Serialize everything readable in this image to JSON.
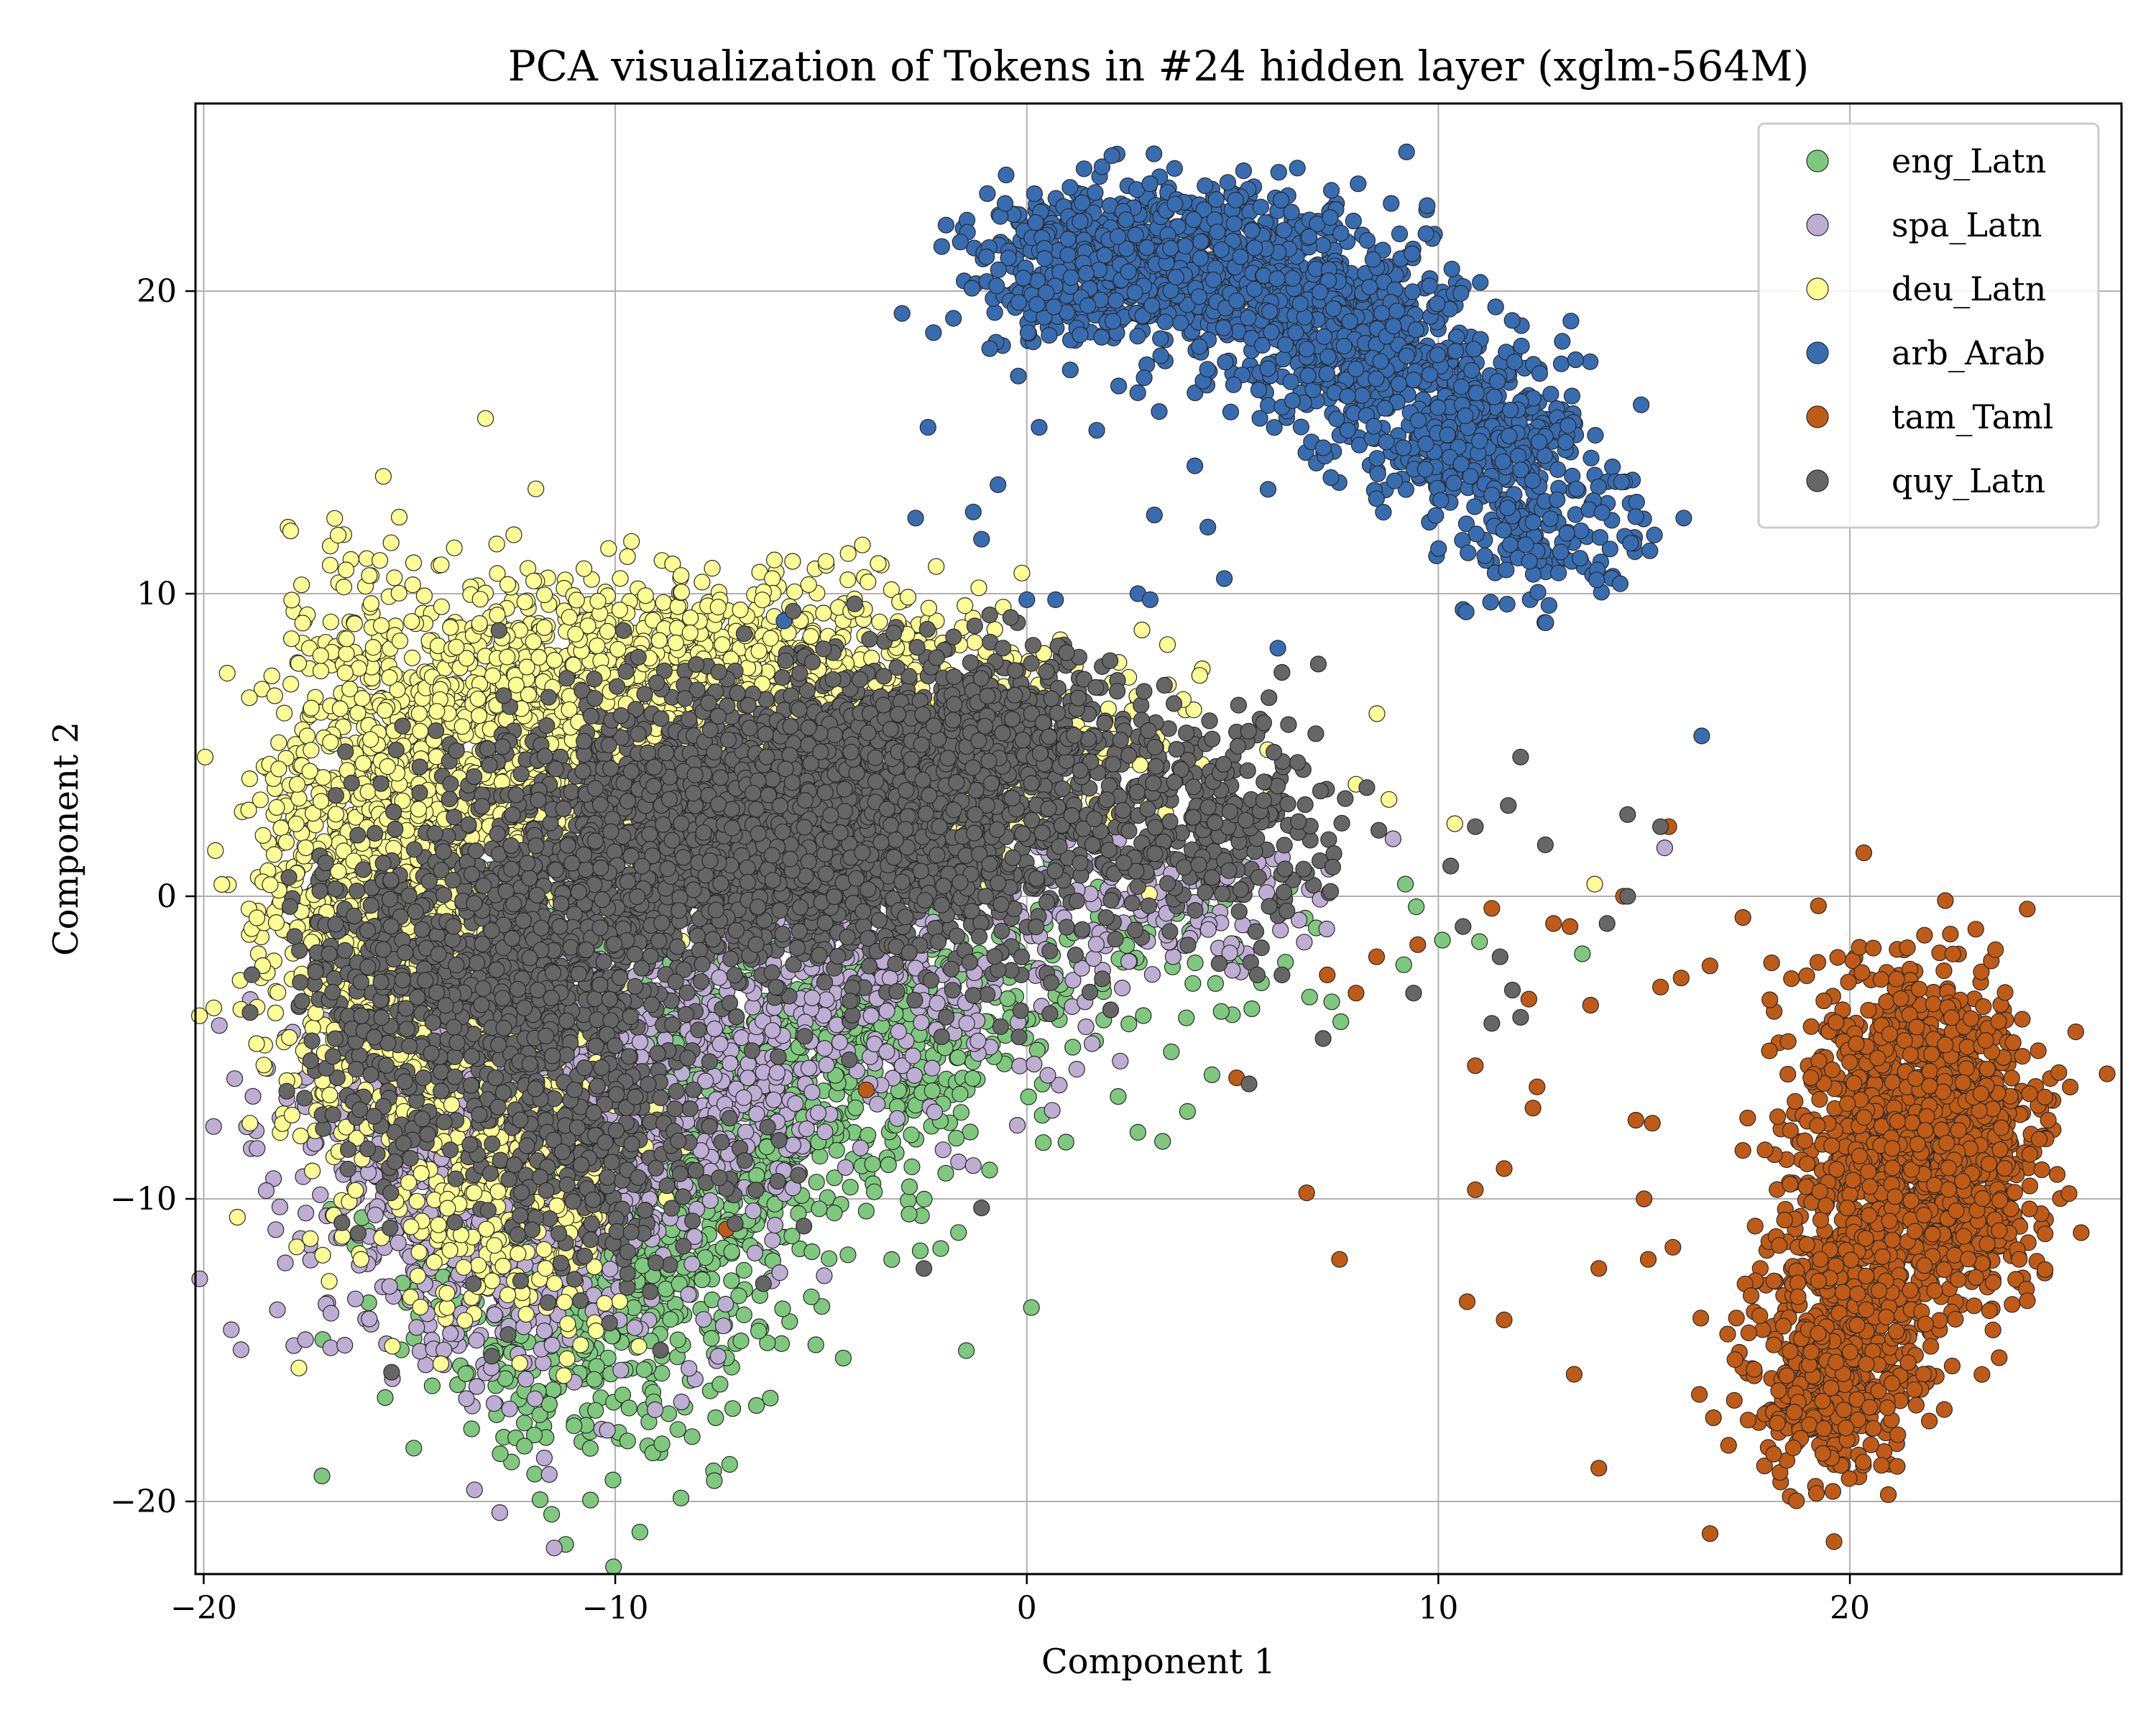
{
  "chart_data": {
    "type": "scatter",
    "title": "PCA visualization of Tokens in #24 hidden layer (xglm-564M)",
    "xlabel": "Component 1",
    "ylabel": "Component 2",
    "xlim": [
      -20.2,
      26.6
    ],
    "ylim": [
      -22.4,
      26.2
    ],
    "xticks": [
      -20,
      -10,
      0,
      10,
      20
    ],
    "yticks": [
      -20,
      -10,
      0,
      10,
      20
    ],
    "xtick_labels": [
      "−20",
      "−10",
      "0",
      "10",
      "20"
    ],
    "ytick_labels": [
      "−20",
      "−10",
      "0",
      "10",
      "20"
    ],
    "grid": true,
    "legend_position": "top-right",
    "series": [
      {
        "name": "eng_Latn",
        "color": "#7fc97f",
        "clusters": [
          {
            "cx": -10.5,
            "cy": -11.0,
            "sx": 2.2,
            "sy": 3.8,
            "n": 900
          },
          {
            "cx": -7.0,
            "cy": -7.0,
            "sx": 2.5,
            "sy": 2.6,
            "n": 600
          },
          {
            "cx": -3.0,
            "cy": -4.0,
            "sx": 2.0,
            "sy": 1.6,
            "n": 260
          },
          {
            "cx": 3.0,
            "cy": -2.0,
            "sx": 3.0,
            "sy": 1.5,
            "n": 70
          }
        ],
        "extra_points": [
          [
            2.7,
            -7.8
          ],
          [
            3.3,
            -8.1
          ],
          [
            4.5,
            -5.9
          ],
          [
            9.2,
            0.4
          ],
          [
            13.5,
            -1.9
          ],
          [
            11.0,
            -1.5
          ],
          [
            6.4,
            0.3
          ],
          [
            -11.0,
            -17.5
          ],
          [
            -9.7,
            -18.0
          ]
        ]
      },
      {
        "name": "spa_Latn",
        "color": "#beaed4",
        "clusters": [
          {
            "cx": -13.0,
            "cy": -9.0,
            "sx": 2.5,
            "sy": 3.2,
            "n": 900
          },
          {
            "cx": -9.5,
            "cy": -6.5,
            "sx": 2.5,
            "sy": 2.2,
            "n": 500
          },
          {
            "cx": -4.0,
            "cy": -2.5,
            "sx": 3.0,
            "sy": 2.2,
            "n": 400
          },
          {
            "cx": 3.5,
            "cy": 0.0,
            "sx": 2.5,
            "sy": 1.3,
            "n": 110
          }
        ],
        "extra_points": [
          [
            8.9,
            1.9
          ],
          [
            15.5,
            1.6
          ],
          [
            -1.3,
            -8.9
          ],
          [
            -7.5,
            -15.2
          ]
        ]
      },
      {
        "name": "deu_Latn",
        "color": "#fdfd96",
        "clusters": [
          {
            "cx": -15.5,
            "cy": 0.5,
            "sx": 1.6,
            "sy": 4.6,
            "n": 1300
          },
          {
            "cx": -11.5,
            "cy": 5.0,
            "sx": 2.4,
            "sy": 2.4,
            "n": 1100
          },
          {
            "cx": -6.5,
            "cy": 7.5,
            "sx": 3.0,
            "sy": 1.6,
            "n": 700
          },
          {
            "cx": -12.5,
            "cy": -9.5,
            "sx": 1.5,
            "sy": 2.5,
            "n": 350
          },
          {
            "cx": -2.0,
            "cy": 4.5,
            "sx": 3.0,
            "sy": 1.7,
            "n": 300
          }
        ],
        "extra_points": [
          [
            2.8,
            8.8
          ],
          [
            4.2,
            7.3
          ],
          [
            3.8,
            6.5
          ],
          [
            10.4,
            2.4
          ],
          [
            13.8,
            0.4
          ],
          [
            8.0,
            3.7
          ],
          [
            8.8,
            3.2
          ],
          [
            -5.3,
            10.3
          ],
          [
            -8.4,
            10.6
          ]
        ]
      },
      {
        "name": "arb_Arab",
        "color": "#386cb0",
        "clusters": [
          {
            "cx": 2.0,
            "cy": 20.8,
            "sx": 1.6,
            "sy": 1.3,
            "n": 500
          },
          {
            "cx": 5.0,
            "cy": 20.8,
            "sx": 1.8,
            "sy": 1.3,
            "n": 520
          },
          {
            "cx": 8.0,
            "cy": 18.2,
            "sx": 1.5,
            "sy": 1.5,
            "n": 420
          },
          {
            "cx": 10.8,
            "cy": 15.5,
            "sx": 1.3,
            "sy": 1.4,
            "n": 350
          },
          {
            "cx": 12.8,
            "cy": 12.3,
            "sx": 1.1,
            "sy": 1.2,
            "n": 150
          }
        ],
        "extra_points": [
          [
            -2.4,
            15.5
          ],
          [
            -2.7,
            12.5
          ],
          [
            -1.3,
            12.7
          ],
          [
            -0.7,
            13.6
          ],
          [
            -1.1,
            11.8
          ],
          [
            0.0,
            9.8
          ],
          [
            0.7,
            9.8
          ],
          [
            -5.9,
            9.1
          ],
          [
            6.1,
            8.2
          ],
          [
            16.4,
            5.3
          ],
          [
            2.7,
            10.0
          ],
          [
            3.0,
            9.8
          ],
          [
            4.8,
            10.5
          ],
          [
            4.4,
            12.2
          ],
          [
            3.1,
            12.6
          ],
          [
            0.3,
            15.5
          ],
          [
            1.7,
            15.4
          ],
          [
            -0.9,
            18.1
          ]
        ]
      },
      {
        "name": "tam_Taml",
        "color": "#bf5b17",
        "clusters": [
          {
            "cx": 21.6,
            "cy": -6.5,
            "sx": 1.3,
            "sy": 2.2,
            "n": 700
          },
          {
            "cx": 22.8,
            "cy": -9.5,
            "sx": 1.0,
            "sy": 2.0,
            "n": 420
          },
          {
            "cx": 20.2,
            "cy": -12.5,
            "sx": 1.1,
            "sy": 2.6,
            "n": 500
          },
          {
            "cx": 19.3,
            "cy": -16.5,
            "sx": 0.9,
            "sy": 1.5,
            "n": 260
          }
        ],
        "extra_points": [
          [
            -7.3,
            -11.0
          ],
          [
            -3.9,
            -6.4
          ],
          [
            5.1,
            -6.0
          ],
          [
            6.8,
            -9.8
          ],
          [
            7.6,
            -12.0
          ],
          [
            10.9,
            -9.7
          ],
          [
            10.7,
            -13.4
          ],
          [
            11.6,
            -14.0
          ],
          [
            11.6,
            -9.0
          ],
          [
            13.3,
            -15.8
          ],
          [
            13.9,
            -18.9
          ],
          [
            13.9,
            -12.3
          ],
          [
            12.3,
            -7.0
          ],
          [
            12.4,
            -6.3
          ],
          [
            10.9,
            -5.6
          ],
          [
            12.2,
            -3.4
          ],
          [
            13.7,
            -3.6
          ],
          [
            14.8,
            -7.4
          ],
          [
            15.2,
            -7.5
          ],
          [
            15.0,
            -10.0
          ],
          [
            15.1,
            -12.0
          ],
          [
            15.7,
            -11.6
          ],
          [
            15.4,
            -3.0
          ],
          [
            15.9,
            -2.7
          ],
          [
            16.6,
            -2.3
          ],
          [
            17.4,
            -0.7
          ],
          [
            17.4,
            -8.4
          ],
          [
            17.7,
            -10.9
          ],
          [
            17.6,
            -13.2
          ],
          [
            13.2,
            -1.0
          ],
          [
            12.8,
            -0.9
          ],
          [
            14.5,
            0.0
          ],
          [
            11.3,
            -0.4
          ],
          [
            7.3,
            -2.6
          ],
          [
            8.0,
            -3.2
          ],
          [
            8.5,
            -2.0
          ],
          [
            9.5,
            -1.6
          ],
          [
            15.6,
            2.3
          ],
          [
            18.1,
            -2.2
          ],
          [
            18.5,
            -4.8
          ]
        ]
      },
      {
        "name": "quy_Latn",
        "color": "#666666",
        "clusters": [
          {
            "cx": -5.5,
            "cy": 2.2,
            "sx": 3.6,
            "sy": 2.3,
            "n": 2600
          },
          {
            "cx": -12.5,
            "cy": -2.5,
            "sx": 2.1,
            "sy": 2.4,
            "n": 800
          },
          {
            "cx": -10.5,
            "cy": -8.5,
            "sx": 1.7,
            "sy": 1.9,
            "n": 300
          },
          {
            "cx": -1.0,
            "cy": 5.5,
            "sx": 1.7,
            "sy": 1.3,
            "n": 400
          },
          {
            "cx": 4.5,
            "cy": 2.5,
            "sx": 1.7,
            "sy": 1.7,
            "n": 260
          },
          {
            "cx": -15.5,
            "cy": -4.5,
            "sx": 1.2,
            "sy": 3.5,
            "n": 150
          }
        ],
        "extra_points": [
          [
            10.3,
            1.0
          ],
          [
            10.9,
            2.3
          ],
          [
            11.7,
            3.0
          ],
          [
            12.0,
            4.6
          ],
          [
            12.6,
            1.7
          ],
          [
            14.6,
            2.7
          ],
          [
            15.4,
            2.3
          ],
          [
            14.1,
            -0.9
          ],
          [
            14.6,
            0.0
          ],
          [
            10.6,
            -1.0
          ],
          [
            11.5,
            -2.0
          ],
          [
            11.8,
            -3.1
          ],
          [
            11.3,
            -4.2
          ],
          [
            12.0,
            -4.0
          ],
          [
            9.4,
            -3.2
          ],
          [
            6.2,
            -2.6
          ],
          [
            5.6,
            -2.6
          ],
          [
            7.2,
            -4.7
          ],
          [
            5.4,
            -6.2
          ],
          [
            -2.5,
            -12.3
          ],
          [
            -1.1,
            -10.3
          ],
          [
            -6.4,
            -12.8
          ],
          [
            -8.9,
            -15.0
          ],
          [
            -13.0,
            -15.2
          ],
          [
            5.7,
            -1.7
          ],
          [
            -0.9,
            9.3
          ]
        ]
      }
    ]
  }
}
